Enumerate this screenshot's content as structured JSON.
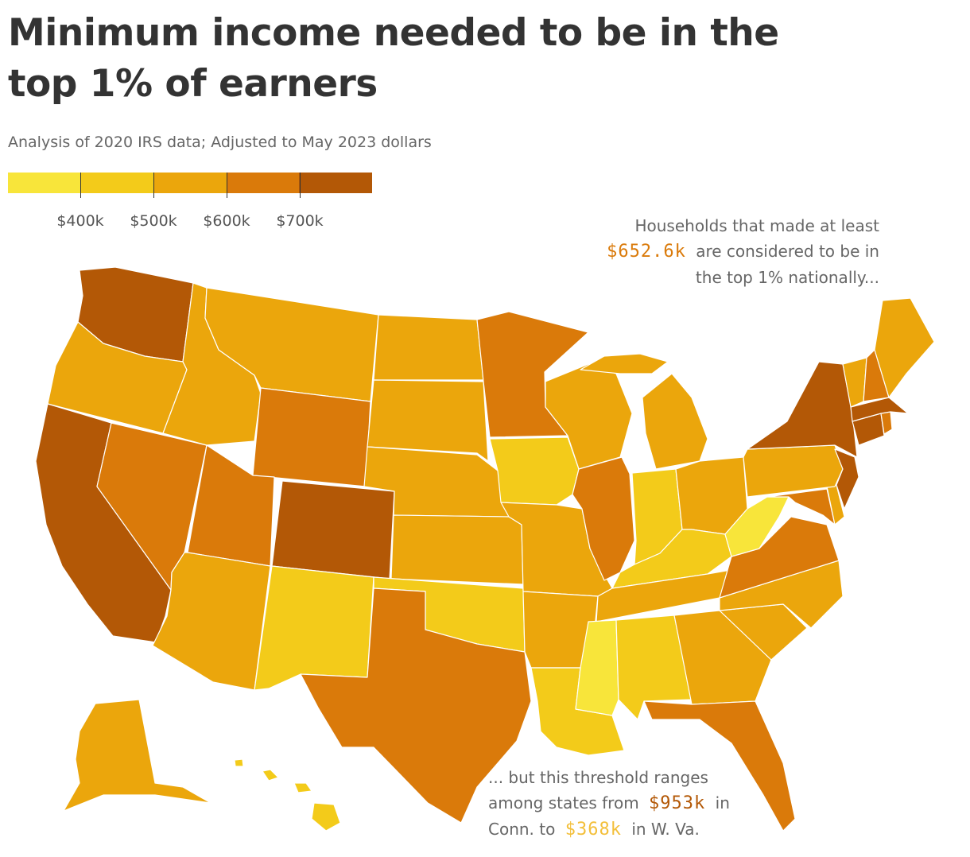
{
  "header": {
    "title": "Minimum income needed to be in the top 1% of earners",
    "subtitle": "Analysis of 2020 IRS data; Adjusted to May 2023 dollars"
  },
  "legend": {
    "colors": [
      "#f8e53a",
      "#f3cb1a",
      "#eba60c",
      "#da7a0a",
      "#b35806"
    ],
    "ticks": [
      "$400k",
      "$500k",
      "$600k",
      "$700k"
    ]
  },
  "annotations": {
    "top": {
      "line1": "Households that made at least",
      "value": "$652.6k",
      "line2": "are considered to be in",
      "line3": "the top 1% nationally..."
    },
    "bottom": {
      "line1": "... but this threshold ranges",
      "line2a": "among states from",
      "high_value": "$953k",
      "line2b": "in",
      "line3a": "Conn. to",
      "low_value": "$368k",
      "line3b": "in W. Va."
    },
    "value_colors": {
      "national": "#da7a0a",
      "high": "#b35806",
      "low": "#f3bf3a"
    }
  },
  "map_data": {
    "bins": {
      "1": "#f8e53a",
      "2": "#f3cb1a",
      "3": "#eba60c",
      "4": "#da7a0a",
      "5": "#b35806"
    },
    "states": {
      "WA": 5,
      "OR": 3,
      "CA": 5,
      "NV": 4,
      "ID": 3,
      "MT": 3,
      "WY": 4,
      "UT": 4,
      "AZ": 3,
      "CO": 5,
      "NM": 2,
      "ND": 3,
      "SD": 3,
      "NE": 3,
      "KS": 3,
      "OK": 2,
      "TX": 4,
      "MN": 4,
      "IA": 2,
      "MO": 3,
      "AR": 3,
      "LA": 2,
      "WI": 3,
      "IL": 4,
      "MI": 3,
      "IN": 2,
      "OH": 3,
      "KY": 2,
      "TN": 3,
      "MS": 1,
      "AL": 2,
      "GA": 3,
      "FL": 4,
      "SC": 3,
      "NC": 3,
      "VA": 4,
      "WV": 1,
      "MD": 4,
      "DE": 3,
      "PA": 3,
      "NJ": 5,
      "NY": 5,
      "CT": 5,
      "RI": 4,
      "MA": 5,
      "VT": 3,
      "NH": 4,
      "ME": 3,
      "AK": 3,
      "HI": 2
    }
  }
}
